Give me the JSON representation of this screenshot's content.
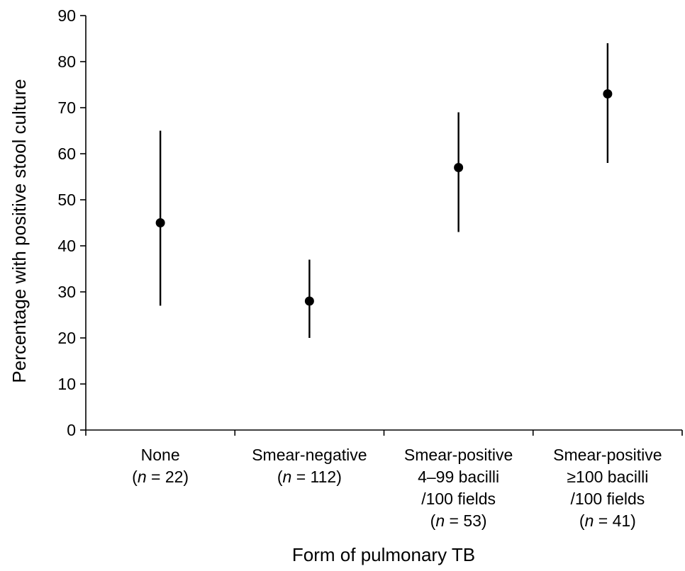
{
  "chart_data": {
    "type": "scatter",
    "xlabel": "Form of pulmonary TB",
    "ylabel": "Percentage with positive stool culture",
    "ylim": [
      0,
      90
    ],
    "yticks": [
      0,
      10,
      20,
      30,
      40,
      50,
      60,
      70,
      80,
      90
    ],
    "grid": false,
    "categories": [
      {
        "lines": [
          "None",
          "(n = 22)"
        ]
      },
      {
        "lines": [
          "Smear-negative",
          "(n = 112)"
        ]
      },
      {
        "lines": [
          "Smear-positive",
          "4–99 bacilli",
          "/100 fields",
          "(n = 53)"
        ]
      },
      {
        "lines": [
          "Smear-positive",
          "≥100 bacilli",
          "/100 fields",
          "(n = 41)"
        ]
      }
    ],
    "series": [
      {
        "values": [
          45,
          28,
          57,
          73
        ],
        "ci_low": [
          27,
          20,
          43,
          58
        ],
        "ci_high": [
          65,
          37,
          69,
          84
        ]
      }
    ]
  }
}
